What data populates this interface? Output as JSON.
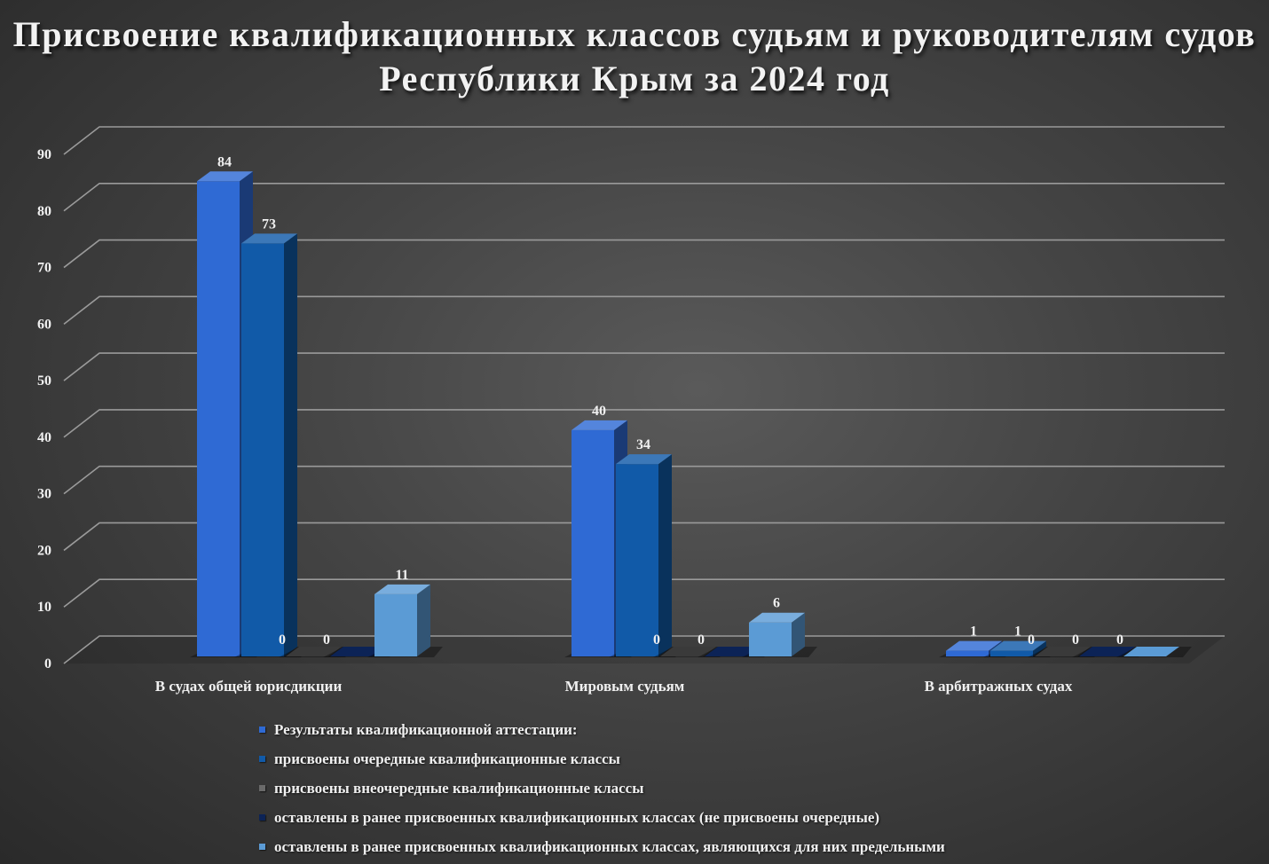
{
  "chart_data": {
    "type": "bar",
    "title": "Присвоение квалификационных классов судьям и руководителям судов Республики Крым за 2024 год",
    "categories": [
      "В судах общей юрисдикции",
      "Мировым судьям",
      "В арбитражных судах"
    ],
    "series": [
      {
        "name": "Результаты квалификационной аттестации:",
        "values": [
          84,
          40,
          1
        ],
        "color": "#2f6ad4"
      },
      {
        "name": "присвоены очередные квалификационные классы",
        "values": [
          73,
          34,
          1
        ],
        "color": "#115aa8"
      },
      {
        "name": "присвоены внеочередные квалификационные классы",
        "values": [
          0,
          0,
          0
        ],
        "color": "#3a3a3a"
      },
      {
        "name": "оставлены в ранее присвоенных квалификационных классах (не присвоены очередные)",
        "values": [
          0,
          0,
          0
        ],
        "color": "#0c2356"
      },
      {
        "name": "оставлены в ранее присвоенных квалификационных классах, являющихся для них предельными",
        "values": [
          11,
          6,
          0
        ],
        "color": "#5b9bd5"
      }
    ],
    "y_ticks": [
      "0",
      "10",
      "20",
      "30",
      "40",
      "50",
      "60",
      "70",
      "80",
      "90"
    ],
    "ylim": [
      0,
      90
    ],
    "grid": true,
    "legend_position": "bottom",
    "data_labels": true
  }
}
